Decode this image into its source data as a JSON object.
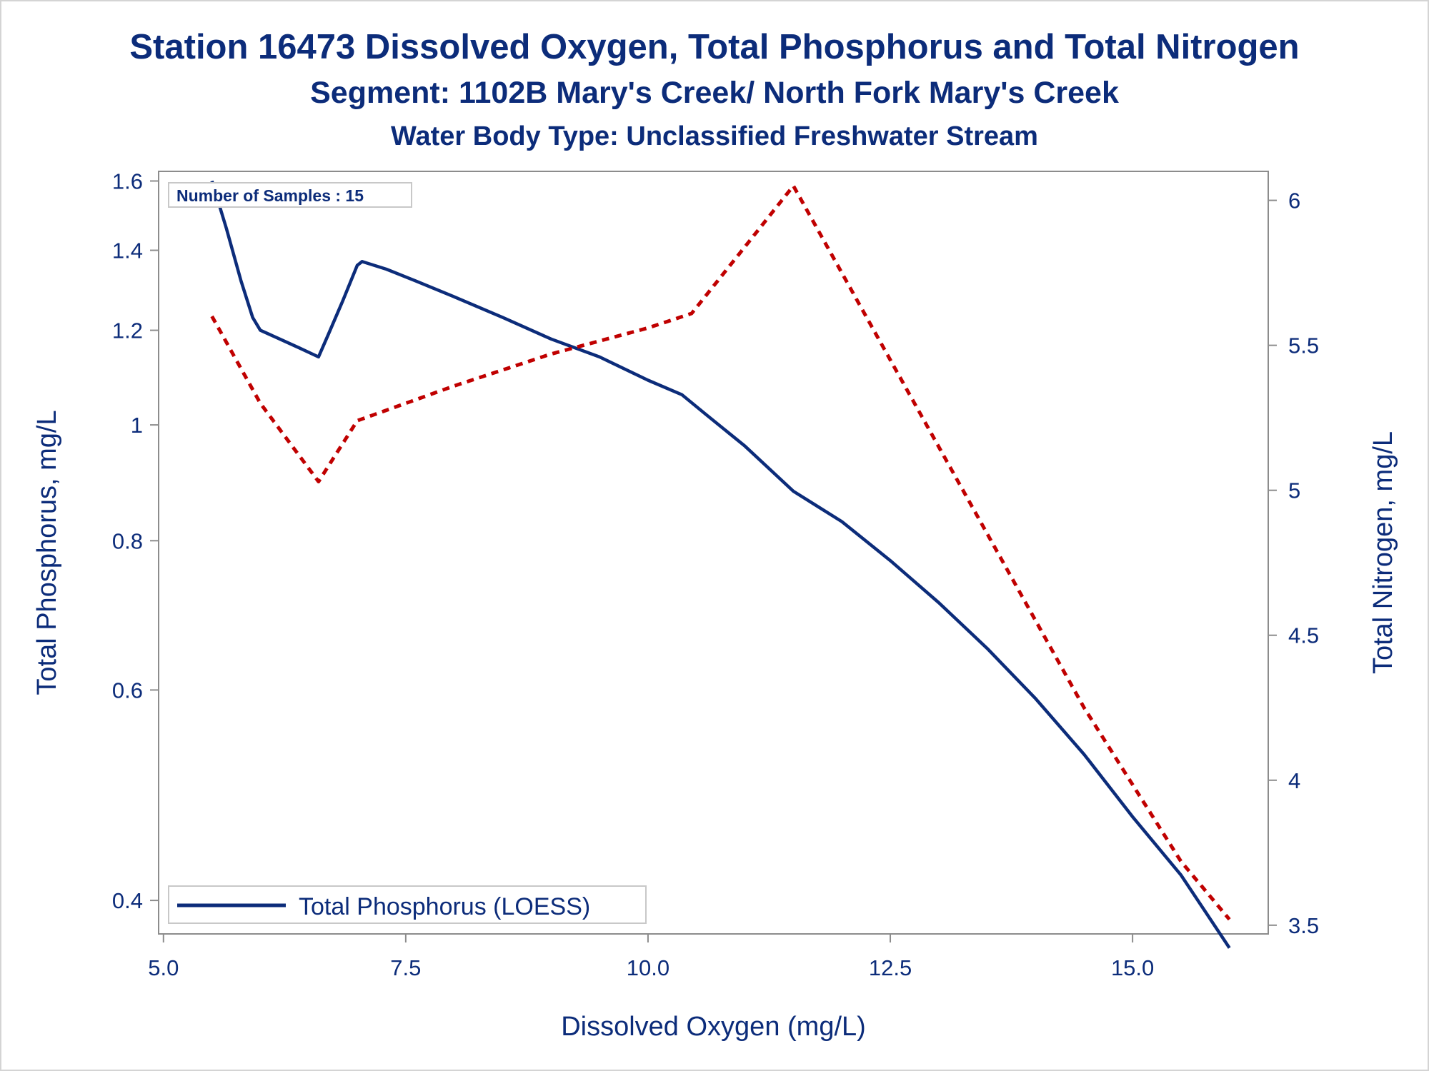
{
  "chart_data": {
    "type": "line",
    "title": "Station 16473  Dissolved Oxygen, Total Phosphorus and Total Nitrogen",
    "subtitle": "Segment: 1102B  Mary's Creek/ North Fork Mary's Creek",
    "subtitle2": "Water Body Type: Unclassified Freshwater Stream",
    "xlabel": "Dissolved Oxygen (mg/L)",
    "ylabel_left": "Total Phosphorus, mg/L",
    "ylabel_right": "Total Nitrogen, mg/L",
    "xlim": [
      4.95,
      16.4
    ],
    "ylim_left": [
      0.375,
      1.63
    ],
    "ylim_right": [
      3.47,
      6.1
    ],
    "y_left_scale": "log",
    "y_right_scale": "linear",
    "x_ticks": [
      "5.0",
      "7.5",
      "10.0",
      "12.5",
      "15.0"
    ],
    "y_left_ticks": [
      "0.4",
      "0.6",
      "0.8",
      "1",
      "1.2",
      "1.4",
      "1.6"
    ],
    "y_right_ticks": [
      "3.5",
      "4",
      "4.5",
      "5",
      "5.5",
      "6"
    ],
    "inset_text": "Number of Samples : 15",
    "legend": {
      "placement": "bottom-left",
      "entries": [
        "Total Phosphorus (LOESS)"
      ]
    },
    "series": [
      {
        "name": "Total Phosphorus (LOESS)",
        "axis": "left",
        "color": "#0c2c7a",
        "style": "solid",
        "x": [
          5.5,
          5.65,
          5.8,
          5.92,
          6.0,
          6.2,
          6.4,
          6.5,
          6.6,
          6.7,
          6.85,
          7.0,
          7.05,
          7.3,
          7.6,
          8.0,
          8.5,
          9.0,
          9.5,
          10.0,
          10.35,
          10.6,
          11.0,
          11.5,
          12.0,
          12.5,
          13.0,
          13.5,
          14.0,
          14.5,
          15.0,
          15.5,
          16.0
        ],
        "y": [
          1.6,
          1.46,
          1.32,
          1.23,
          1.2,
          1.18,
          1.16,
          1.15,
          1.14,
          1.19,
          1.27,
          1.36,
          1.37,
          1.35,
          1.32,
          1.28,
          1.23,
          1.18,
          1.14,
          1.09,
          1.06,
          1.02,
          0.96,
          0.88,
          0.83,
          0.77,
          0.71,
          0.65,
          0.59,
          0.53,
          0.47,
          0.42,
          0.365
        ]
      },
      {
        "name": "",
        "axis": "right",
        "color": "#c00000",
        "style": "dashed",
        "x": [
          5.5,
          6.0,
          6.6,
          7.0,
          8.0,
          9.0,
          10.0,
          10.45,
          11.0,
          11.5,
          12.5,
          13.5,
          14.5,
          15.5,
          16.0
        ],
        "y": [
          5.6,
          5.3,
          5.03,
          5.24,
          5.36,
          5.47,
          5.56,
          5.61,
          5.84,
          6.05,
          5.45,
          4.85,
          4.25,
          3.72,
          3.52
        ]
      }
    ]
  }
}
